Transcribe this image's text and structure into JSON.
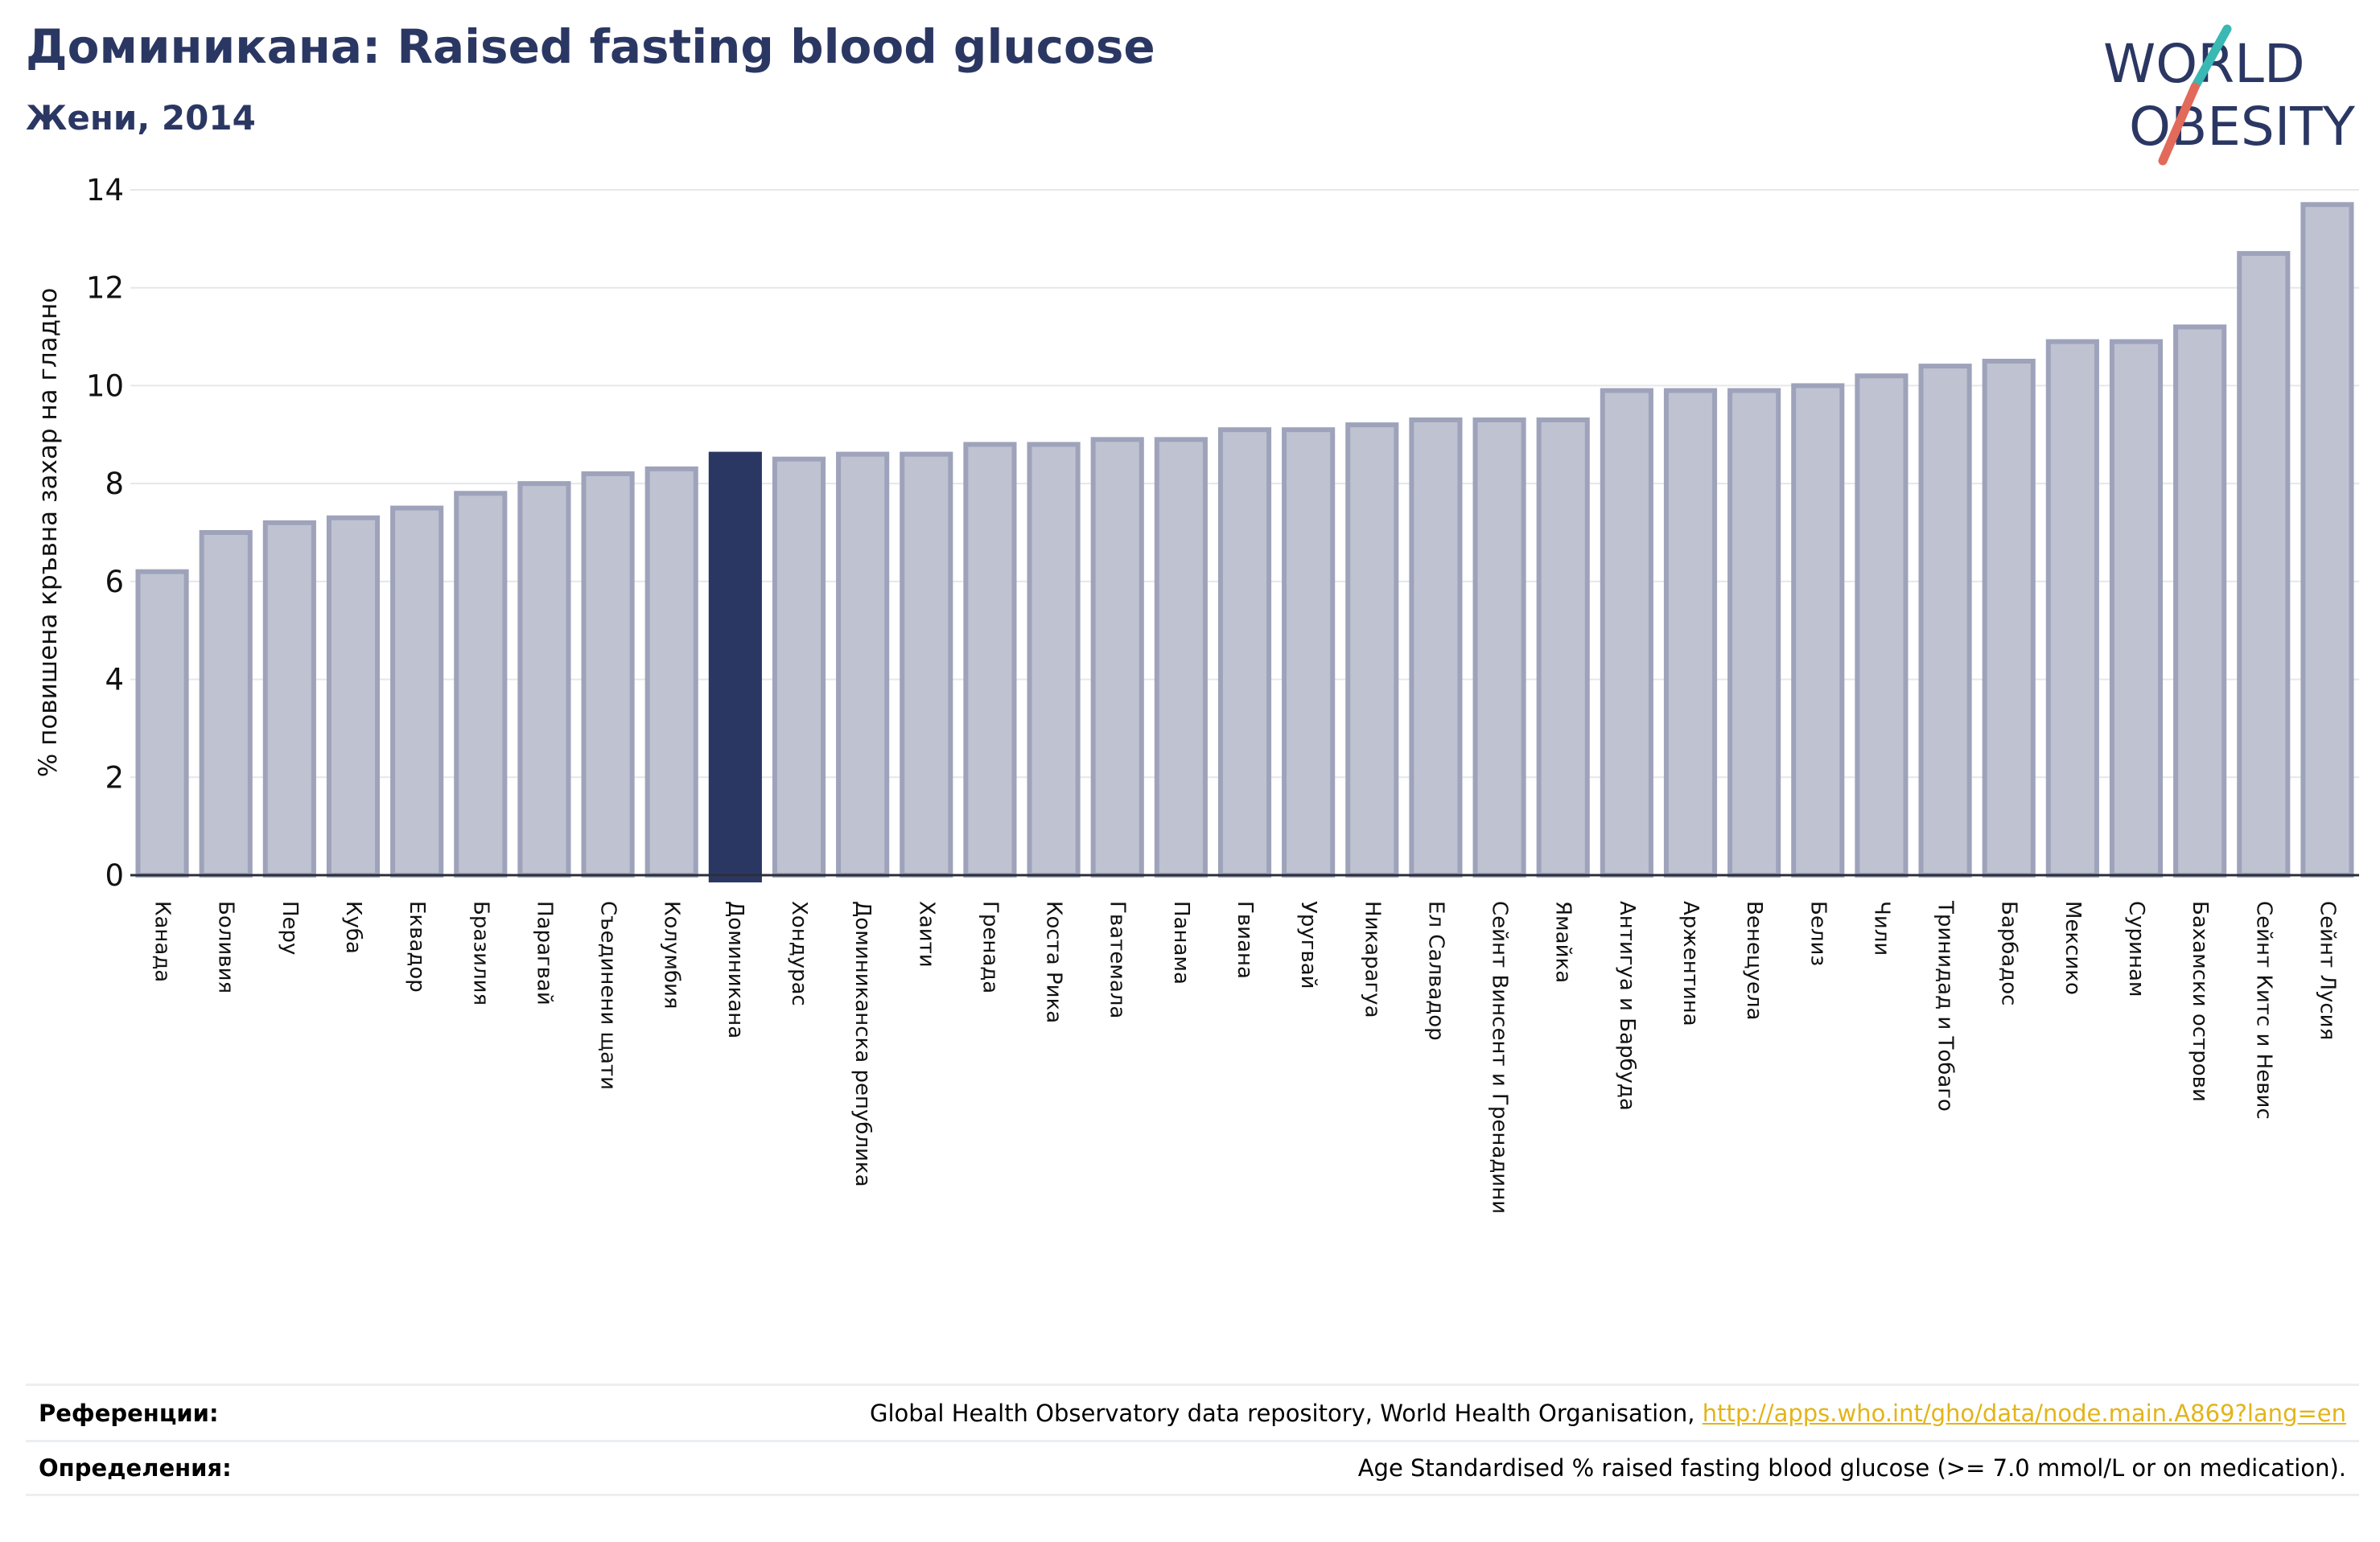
{
  "header": {
    "title": "Доминикана: Raised fasting blood glucose",
    "subtitle": "Жени, 2014"
  },
  "logo": {
    "line1": "WORLD",
    "line2": "OBESITY"
  },
  "colors": {
    "title": "#2b3763",
    "bar_default": "#bfc2d0",
    "bar_edge": "#9ea3bb",
    "bar_highlight": "#2b3763",
    "logo_teal": "#39b8b4",
    "logo_coral": "#e26a5a"
  },
  "chart_data": {
    "type": "bar",
    "ylabel": "% повишена кръвна захар на гладно",
    "ylim": [
      0,
      14
    ],
    "yticks": [
      0,
      2,
      4,
      6,
      8,
      10,
      12,
      14
    ],
    "grid": true,
    "highlight": "Доминикана",
    "categories": [
      "Канада",
      "Боливия",
      "Перу",
      "Куба",
      "Еквадор",
      "Бразилия",
      "Парагвай",
      "Съединени щати",
      "Колумбия",
      "Доминикана",
      "Хондурас",
      "Доминиканска република",
      "Хаити",
      "Гренада",
      "Коста Рика",
      "Гватемала",
      "Панама",
      "Гвиана",
      "Уругвай",
      "Никарагуа",
      "Ел Салвадор",
      "Сейнт Винсент и Гренадини",
      "Ямайка",
      "Антигуа и Барбуда",
      "Аржентина",
      "Венецуела",
      "Белиз",
      "Чили",
      "Тринидад и Тобаго",
      "Барбадос",
      "Мексико",
      "Суринам",
      "Бахамски острови",
      "Сейнт Китс и Невис",
      "Сейнт Лусия"
    ],
    "values": [
      6.2,
      7.0,
      7.2,
      7.3,
      7.5,
      7.8,
      8.0,
      8.2,
      8.3,
      8.6,
      8.5,
      8.6,
      8.6,
      8.8,
      8.8,
      8.9,
      8.9,
      9.1,
      9.1,
      9.2,
      9.3,
      9.3,
      9.3,
      9.9,
      9.9,
      9.9,
      10.0,
      10.2,
      10.4,
      10.5,
      10.9,
      10.9,
      11.2,
      12.7,
      13.7
    ]
  },
  "footer": {
    "references_label": "Референции:",
    "references_text": "Global Health Observatory data repository, World Health Organisation, ",
    "references_link": "http://apps.who.int/gho/data/node.main.A869?lang=en",
    "definitions_label": "Определения:",
    "definitions_text": "Age Standardised % raised fasting blood glucose (>= 7.0 mmol/L or on medication)."
  }
}
